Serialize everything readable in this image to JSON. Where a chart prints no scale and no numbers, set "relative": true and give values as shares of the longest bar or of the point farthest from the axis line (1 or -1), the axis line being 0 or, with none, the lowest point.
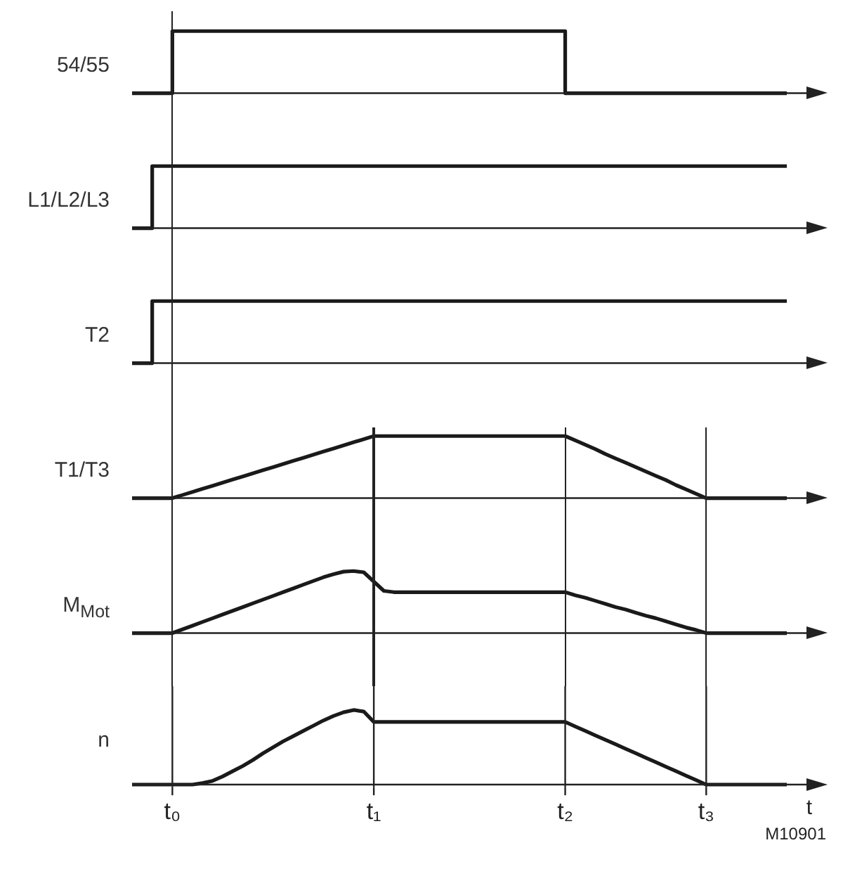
{
  "chart_data": [
    {
      "type": "step",
      "ylabel": "54/55",
      "relative": true,
      "marker": "none",
      "tick_labels": false,
      "categories": [
        null,
        null,
        null,
        null,
        null,
        null,
        null,
        null,
        null,
        null,
        null,
        null,
        null,
        null,
        null,
        null,
        null,
        null,
        null,
        null,
        null,
        null,
        null,
        null,
        null,
        null,
        null,
        null,
        null,
        null,
        null,
        null,
        null,
        null,
        null,
        null,
        null,
        null,
        null,
        null,
        null,
        null,
        null,
        null,
        null,
        null,
        null,
        null,
        null,
        null,
        null,
        null,
        null,
        null,
        null,
        null,
        null,
        null,
        null,
        null,
        null,
        null,
        null,
        null,
        null,
        null
      ],
      "series": [
        {
          "color": "#1a1a1a",
          "values": [
            0,
            0,
            0,
            0,
            1,
            1,
            1,
            1,
            1,
            1,
            1,
            1,
            1,
            1,
            1,
            1,
            1,
            1,
            1,
            1,
            1,
            1,
            1,
            1,
            1,
            1,
            1,
            1,
            1,
            1,
            1,
            1,
            1,
            1,
            1,
            1,
            1,
            1,
            1,
            1,
            1,
            1,
            1,
            0,
            0,
            0,
            0,
            0,
            0,
            0,
            0,
            0,
            0,
            0,
            0,
            0,
            0,
            0,
            0,
            0,
            0,
            0,
            0,
            0,
            0,
            0
          ]
        }
      ]
    },
    {
      "type": "step",
      "ylabel": "L1/L2/L3",
      "relative": true,
      "marker": "none",
      "tick_labels": false,
      "categories": [
        null,
        null,
        null,
        null,
        null,
        null,
        null,
        null,
        null,
        null,
        null,
        null,
        null,
        null,
        null,
        null,
        null,
        null,
        null,
        null,
        null,
        null,
        null,
        null,
        null,
        null,
        null,
        null,
        null,
        null,
        null,
        null,
        null,
        null,
        null,
        null,
        null,
        null,
        null,
        null,
        null,
        null,
        null,
        null,
        null,
        null,
        null,
        null,
        null,
        null,
        null,
        null,
        null,
        null,
        null,
        null,
        null,
        null,
        null,
        null,
        null,
        null,
        null,
        null,
        null,
        null
      ],
      "series": [
        {
          "color": "#1a1a1a",
          "values": [
            0,
            0,
            1,
            1,
            1,
            1,
            1,
            1,
            1,
            1,
            1,
            1,
            1,
            1,
            1,
            1,
            1,
            1,
            1,
            1,
            1,
            1,
            1,
            1,
            1,
            1,
            1,
            1,
            1,
            1,
            1,
            1,
            1,
            1,
            1,
            1,
            1,
            1,
            1,
            1,
            1,
            1,
            1,
            1,
            1,
            1,
            1,
            1,
            1,
            1,
            1,
            1,
            1,
            1,
            1,
            1,
            1,
            1,
            1,
            1,
            1,
            1,
            1,
            1,
            1,
            1
          ]
        }
      ]
    },
    {
      "type": "step",
      "ylabel": "T2",
      "relative": true,
      "marker": "none",
      "tick_labels": false,
      "categories": [
        null,
        null,
        null,
        null,
        null,
        null,
        null,
        null,
        null,
        null,
        null,
        null,
        null,
        null,
        null,
        null,
        null,
        null,
        null,
        null,
        null,
        null,
        null,
        null,
        null,
        null,
        null,
        null,
        null,
        null,
        null,
        null,
        null,
        null,
        null,
        null,
        null,
        null,
        null,
        null,
        null,
        null,
        null,
        null,
        null,
        null,
        null,
        null,
        null,
        null,
        null,
        null,
        null,
        null,
        null,
        null,
        null,
        null,
        null,
        null,
        null,
        null,
        null,
        null,
        null,
        null
      ],
      "series": [
        {
          "color": "#1a1a1a",
          "values": [
            0,
            0,
            1,
            1,
            1,
            1,
            1,
            1,
            1,
            1,
            1,
            1,
            1,
            1,
            1,
            1,
            1,
            1,
            1,
            1,
            1,
            1,
            1,
            1,
            1,
            1,
            1,
            1,
            1,
            1,
            1,
            1,
            1,
            1,
            1,
            1,
            1,
            1,
            1,
            1,
            1,
            1,
            1,
            1,
            1,
            1,
            1,
            1,
            1,
            1,
            1,
            1,
            1,
            1,
            1,
            1,
            1,
            1,
            1,
            1,
            1,
            1,
            1,
            1,
            1,
            1
          ]
        }
      ]
    },
    {
      "type": "line",
      "ylabel": "T1/T3",
      "relative": true,
      "marker": "none",
      "tick_labels": false,
      "categories": [
        null,
        null,
        null,
        null,
        null,
        null,
        null,
        null,
        null,
        null,
        null,
        null,
        null,
        null,
        null,
        null,
        null,
        null,
        null,
        null,
        null,
        null,
        null,
        null,
        null,
        null,
        null,
        null,
        null,
        null,
        null,
        null,
        null,
        null,
        null,
        null,
        null,
        null,
        null,
        null,
        null,
        null,
        null,
        null,
        null,
        null,
        null,
        null,
        null,
        null,
        null,
        null,
        null,
        null,
        null,
        null,
        null,
        null,
        null,
        null,
        null,
        null,
        null,
        null,
        null,
        null
      ],
      "series": [
        {
          "color": "#1a1a1a",
          "values": [
            0,
            0,
            0,
            0,
            0,
            0.05,
            0.1,
            0.15,
            0.2,
            0.25,
            0.3,
            0.35,
            0.4,
            0.45,
            0.5,
            0.55,
            0.6,
            0.65,
            0.7,
            0.75,
            0.8,
            0.85,
            0.9,
            0.95,
            1,
            1,
            1,
            1,
            1,
            1,
            1,
            1,
            1,
            1,
            1,
            1,
            1,
            1,
            1,
            1,
            1,
            1,
            1,
            1,
            0.93,
            0.86,
            0.79,
            0.71,
            0.64,
            0.57,
            0.5,
            0.43,
            0.36,
            0.29,
            0.21,
            0.14,
            0.07,
            0,
            0,
            0,
            0,
            0,
            0,
            0,
            0,
            0
          ]
        }
      ]
    },
    {
      "type": "line",
      "ylabel": "M$_{Mot}$",
      "relative": true,
      "marker": "none",
      "tick_labels": false,
      "categories": [
        null,
        null,
        null,
        null,
        null,
        null,
        null,
        null,
        null,
        null,
        null,
        null,
        null,
        null,
        null,
        null,
        null,
        null,
        null,
        null,
        null,
        null,
        null,
        null,
        null,
        null,
        null,
        null,
        null,
        null,
        null,
        null,
        null,
        null,
        null,
        null,
        null,
        null,
        null,
        null,
        null,
        null,
        null,
        null,
        null,
        null,
        null,
        null,
        null,
        null,
        null,
        null,
        null,
        null,
        null,
        null,
        null,
        null,
        null,
        null,
        null,
        null,
        null,
        null,
        null,
        null
      ],
      "series": [
        {
          "color": "#1a1a1a",
          "values": [
            0,
            0,
            0,
            0,
            0,
            0.06,
            0.12,
            0.18,
            0.24,
            0.3,
            0.36,
            0.42,
            0.48,
            0.54,
            0.6,
            0.66,
            0.72,
            0.78,
            0.84,
            0.9,
            0.95,
            0.99,
            1,
            0.98,
            0.83,
            0.68,
            0.66,
            0.66,
            0.66,
            0.66,
            0.66,
            0.66,
            0.66,
            0.66,
            0.66,
            0.66,
            0.66,
            0.66,
            0.66,
            0.66,
            0.66,
            0.66,
            0.66,
            0.66,
            0.61,
            0.57,
            0.52,
            0.47,
            0.42,
            0.38,
            0.33,
            0.28,
            0.24,
            0.19,
            0.14,
            0.09,
            0.05,
            0,
            0,
            0,
            0,
            0,
            0,
            0,
            0,
            0
          ]
        }
      ]
    },
    {
      "type": "line",
      "ylabel": "n",
      "xlabel": "t",
      "relative": true,
      "marker": "none",
      "tick_labels": "x",
      "categories": [
        null,
        null,
        null,
        null,
        "t₀",
        null,
        null,
        null,
        null,
        null,
        null,
        null,
        null,
        null,
        null,
        null,
        null,
        null,
        null,
        null,
        null,
        null,
        null,
        null,
        "t₁",
        null,
        null,
        null,
        null,
        null,
        null,
        null,
        null,
        null,
        null,
        null,
        null,
        null,
        null,
        null,
        null,
        null,
        null,
        "t₂",
        null,
        null,
        null,
        null,
        null,
        null,
        null,
        null,
        null,
        null,
        null,
        null,
        null,
        "t₃",
        null,
        null,
        null,
        null,
        null,
        null,
        null,
        null
      ],
      "series": [
        {
          "color": "#1a1a1a",
          "values": [
            0,
            0,
            0,
            0,
            0,
            0,
            0,
            0.02,
            0.05,
            0.11,
            0.18,
            0.25,
            0.33,
            0.42,
            0.5,
            0.58,
            0.65,
            0.72,
            0.79,
            0.86,
            0.92,
            0.97,
            1,
            0.98,
            0.84,
            0.84,
            0.84,
            0.84,
            0.84,
            0.84,
            0.84,
            0.84,
            0.84,
            0.84,
            0.84,
            0.84,
            0.84,
            0.84,
            0.84,
            0.84,
            0.84,
            0.84,
            0.84,
            0.84,
            0.78,
            0.72,
            0.66,
            0.6,
            0.54,
            0.48,
            0.42,
            0.36,
            0.3,
            0.24,
            0.18,
            0.12,
            0.06,
            0,
            0,
            0,
            0,
            0,
            0,
            0,
            0,
            0
          ]
        }
      ],
      "ref_lines": [
        {
          "axis": "x",
          "value": "t₀"
        },
        {
          "axis": "x",
          "value": "t₁"
        },
        {
          "axis": "x",
          "value": "t₂"
        },
        {
          "axis": "x",
          "value": "t₃"
        }
      ],
      "annotations": [
        "M10901"
      ]
    }
  ]
}
